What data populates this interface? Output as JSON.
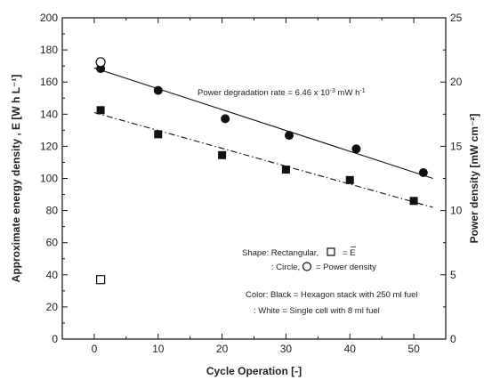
{
  "chart_data": {
    "type": "scatter",
    "xlabel": "Cycle Operation [-]",
    "ylabel_left": "Approximate energy density , E [W h L⁻¹]",
    "ylabel_right": "Power density [mW cm⁻²]",
    "xlim": [
      -5,
      55
    ],
    "ylim_left": [
      0,
      200
    ],
    "ylim_right": [
      0,
      25
    ],
    "x_ticks": [
      0,
      10,
      20,
      30,
      40,
      50
    ],
    "y_left_ticks": [
      0,
      20,
      40,
      60,
      80,
      100,
      120,
      140,
      160,
      180,
      200
    ],
    "y_right_ticks": [
      0,
      5,
      10,
      15,
      20,
      25
    ],
    "grid": false,
    "series": [
      {
        "marker": "filled-circle",
        "axis": "right",
        "x": [
          1,
          10,
          20.5,
          30.5,
          41,
          51.5
        ],
        "y": [
          21.05,
          19.35,
          17.15,
          15.85,
          14.8,
          12.95
        ]
      },
      {
        "marker": "filled-square",
        "axis": "left",
        "x": [
          1,
          10,
          20,
          30,
          40,
          50
        ],
        "y": [
          142.5,
          127.5,
          114.5,
          105.5,
          99,
          86
        ]
      },
      {
        "marker": "open-circle",
        "axis": "right",
        "x": [
          1
        ],
        "y": [
          21.55
        ]
      },
      {
        "marker": "open-square",
        "axis": "left",
        "x": [
          1
        ],
        "y": [
          37
        ]
      }
    ],
    "fit_lines": [
      {
        "style": "solid",
        "axis": "right",
        "x": [
          0,
          53
        ],
        "y": [
          21.1,
          12.5
        ]
      },
      {
        "style": "dash-dot",
        "axis": "left",
        "x": [
          0,
          53
        ],
        "y": [
          141,
          82
        ]
      }
    ],
    "annotations": {
      "rate": {
        "prefix": "Power degradation rate = 6.46 x 10",
        "exp": "-3",
        "suffix": " mW h",
        "suffix_exp": "-1"
      },
      "shape_1": "Shape: Rectangular,",
      "shape_1b": "= E",
      "shape_2": ": Circle,",
      "shape_2b": "= Power density",
      "color_1": "Color: Black = Hexagon stack with 250 ml fuel",
      "color_2": ": White = Single cell with 8 ml fuel"
    }
  }
}
